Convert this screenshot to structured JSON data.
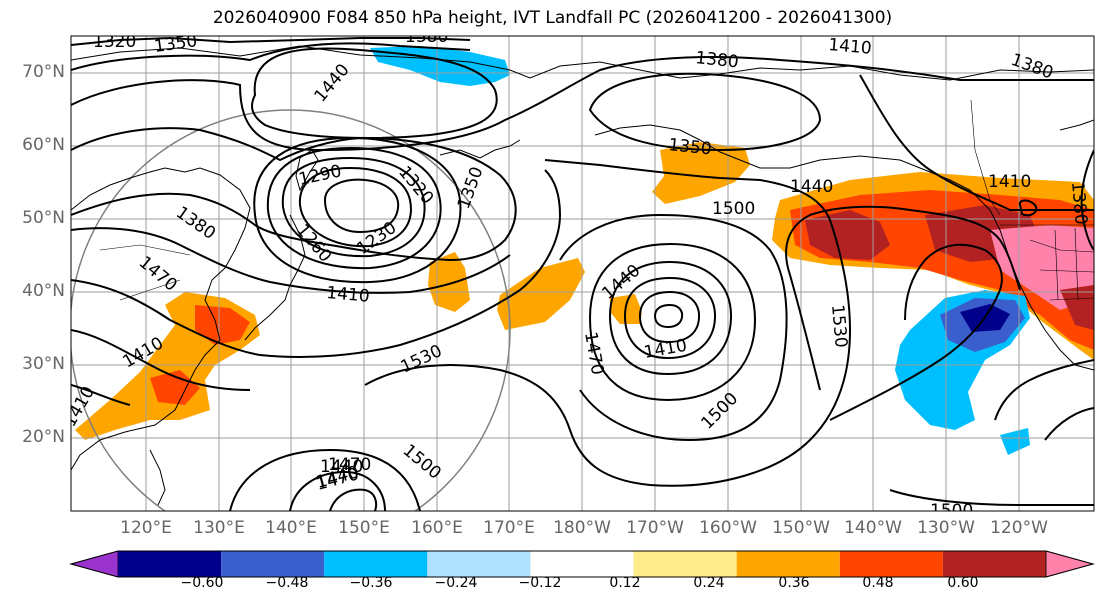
{
  "title": "2026040900 F084 850 hPa height, IVT Landfall PC (2026041200 - 2026041300)",
  "lat_labels": [
    "70°N",
    "60°N",
    "50°N",
    "40°N",
    "30°N",
    "20°N"
  ],
  "lon_labels": [
    "120°E",
    "130°E",
    "140°E",
    "150°E",
    "160°E",
    "170°E",
    "180°W",
    "170°W",
    "160°W",
    "150°W",
    "140°W",
    "130°W",
    "120°W"
  ],
  "contour_labels": [
    "1320",
    "1350",
    "1380",
    "1410",
    "1380",
    "1380",
    "1440",
    "1350",
    "1440",
    "1500",
    "1410",
    "1380",
    "1290",
    "1320",
    "1260",
    "1230",
    "1350",
    "1380",
    "1470",
    "1410",
    "1440",
    "1470",
    "1410",
    "1530",
    "1530",
    "1410",
    "1440",
    "1470",
    "1470",
    "1500",
    "1500",
    "1410",
    "1440",
    "1500"
  ],
  "colorbar": {
    "ticks": [
      "−0.60",
      "−0.48",
      "−0.36",
      "−0.24",
      "−0.12",
      "0.12",
      "0.24",
      "0.36",
      "0.48",
      "0.60"
    ],
    "colors": [
      "#9a32cd",
      "#00008b",
      "#3a5fcd",
      "#00bfff",
      "#b0e2ff",
      "#ffffff",
      "#ffec8b",
      "#ffa500",
      "#ff4500",
      "#b22222",
      "#ff82ab"
    ]
  }
}
